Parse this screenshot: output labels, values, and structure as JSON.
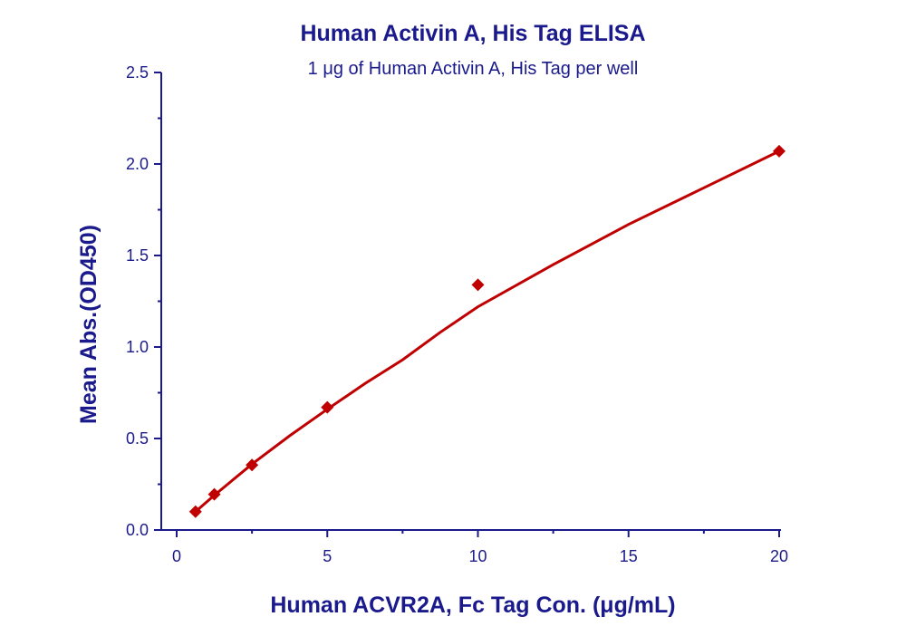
{
  "chart_data": {
    "type": "scatter",
    "title": "Human Activin A, His Tag ELISA",
    "subtitle": "1 μg of Human Activin A, His Tag per well",
    "xlabel": "Human ACVR2A, Fc Tag Con. (μg/mL)",
    "ylabel": "Mean Abs.(OD450)",
    "xlim": [
      -1,
      20
    ],
    "ylim": [
      0,
      2.5
    ],
    "x_ticks": [
      0,
      5,
      10,
      15,
      20
    ],
    "x_tick_labels": [
      "0",
      "5",
      "10",
      "15",
      "20"
    ],
    "y_ticks": [
      0.0,
      0.5,
      1.0,
      1.5,
      2.0,
      2.5
    ],
    "y_tick_labels": [
      "0.0",
      "0.5",
      "1.0",
      "1.5",
      "2.0",
      "2.5"
    ],
    "grid": false,
    "series": [
      {
        "marker": "diamond",
        "color": "#c00000",
        "x": [
          0.625,
          1.25,
          2.5,
          5,
          10,
          20
        ],
        "y": [
          0.1,
          0.195,
          0.355,
          0.67,
          1.34,
          2.07
        ]
      }
    ],
    "fit": {
      "color": "#c00000",
      "x": [
        0.625,
        1.25,
        2.5,
        3.75,
        5,
        6.25,
        7.5,
        8.75,
        10,
        12.5,
        15,
        17.5,
        20
      ],
      "y": [
        0.1,
        0.19,
        0.36,
        0.515,
        0.66,
        0.8,
        0.93,
        1.08,
        1.22,
        1.45,
        1.67,
        1.87,
        2.07
      ]
    }
  }
}
